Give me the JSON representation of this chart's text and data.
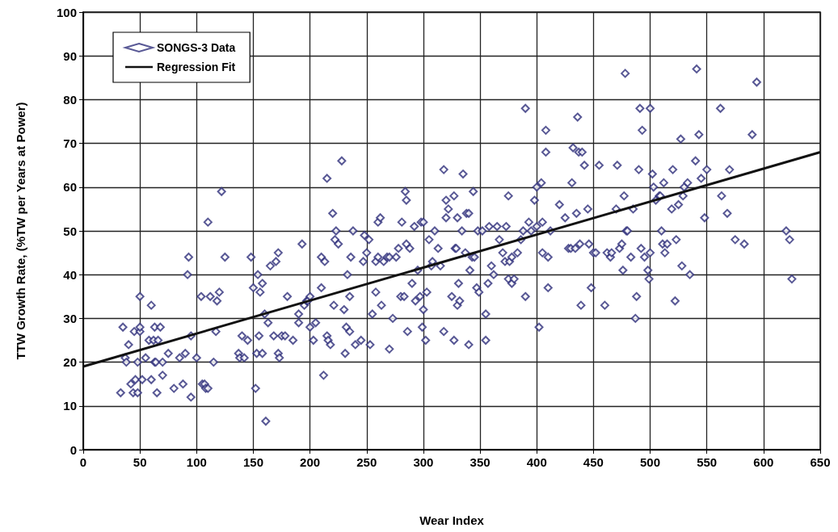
{
  "chart_data": {
    "type": "scatter",
    "xlabel": "Wear Index",
    "ylabel": "TTW Growth Rate, (%TW per Years at Power)",
    "xlim": [
      0,
      650
    ],
    "xticks": [
      0,
      50,
      100,
      150,
      200,
      250,
      300,
      350,
      400,
      450,
      500,
      550,
      600,
      650
    ],
    "ylim": [
      0,
      100
    ],
    "yticks": [
      0,
      10,
      20,
      30,
      40,
      50,
      60,
      70,
      80,
      90,
      100
    ],
    "grid": true,
    "legend": "top left",
    "series": [
      {
        "name": "SONGS-3 Data",
        "marker": "diamond",
        "color": "#2e2e7a",
        "x": [
          33,
          35,
          37,
          38,
          40,
          42,
          44,
          45,
          46,
          48,
          48,
          50,
          50,
          50,
          52,
          55,
          58,
          60,
          60,
          62,
          63,
          63,
          64,
          65,
          66,
          68,
          70,
          70,
          75,
          80,
          85,
          88,
          90,
          92,
          93,
          95,
          95,
          100,
          104,
          105,
          107,
          108,
          110,
          110,
          112,
          115,
          117,
          118,
          120,
          122,
          125,
          137,
          138,
          140,
          142,
          145,
          148,
          150,
          152,
          153,
          154,
          155,
          156,
          158,
          158,
          160,
          161,
          163,
          165,
          168,
          170,
          172,
          172,
          173,
          175,
          178,
          180,
          185,
          190,
          190,
          193,
          195,
          197,
          198,
          200,
          200,
          203,
          205,
          210,
          210,
          212,
          213,
          215,
          215,
          216,
          218,
          220,
          221,
          222,
          223,
          225,
          228,
          230,
          231,
          232,
          233,
          235,
          235,
          236,
          238,
          240,
          245,
          247,
          248,
          250,
          252,
          253,
          255,
          258,
          258,
          260,
          260,
          262,
          263,
          265,
          268,
          270,
          270,
          273,
          276,
          278,
          280,
          281,
          283,
          284,
          285,
          285,
          286,
          288,
          290,
          292,
          293,
          295,
          297,
          298,
          299,
          300,
          300,
          302,
          303,
          305,
          307,
          308,
          310,
          313,
          315,
          318,
          318,
          320,
          320,
          322,
          325,
          327,
          327,
          328,
          329,
          330,
          330,
          331,
          332,
          334,
          335,
          337,
          338,
          340,
          340,
          341,
          343,
          344,
          345,
          347,
          348,
          349,
          352,
          355,
          355,
          357,
          358,
          360,
          362,
          365,
          367,
          370,
          372,
          373,
          375,
          375,
          376,
          378,
          378,
          380,
          383,
          386,
          388,
          390,
          390,
          393,
          395,
          398,
          400,
          400,
          402,
          404,
          405,
          405,
          408,
          408,
          410,
          410,
          412,
          420,
          425,
          428,
          430,
          431,
          432,
          434,
          435,
          436,
          437,
          438,
          439,
          440,
          442,
          445,
          446,
          448,
          450,
          452,
          455,
          460,
          462,
          465,
          466,
          470,
          471,
          473,
          475,
          476,
          477,
          478,
          479,
          480,
          483,
          485,
          487,
          488,
          490,
          491,
          492,
          493,
          495,
          498,
          499,
          500,
          500,
          502,
          503,
          505,
          508,
          509,
          510,
          511,
          512,
          513,
          515,
          519,
          520,
          522,
          523,
          525,
          527,
          528,
          529,
          530,
          533,
          535,
          540,
          541,
          543,
          545,
          548,
          550,
          562,
          563,
          568,
          570,
          575,
          583,
          590,
          594,
          620,
          623,
          625
        ],
        "values": [
          13,
          28,
          21,
          20,
          24,
          15,
          13,
          27,
          16,
          13,
          20,
          35,
          27,
          28,
          16,
          21,
          25,
          33,
          16,
          25,
          20,
          28,
          20,
          13,
          25,
          28,
          17,
          20,
          22,
          14,
          21,
          15,
          22,
          40,
          44,
          12,
          26,
          21,
          35,
          15,
          15,
          14,
          52,
          14,
          35,
          20,
          27,
          34,
          36,
          59,
          44,
          22,
          21,
          26,
          21,
          25,
          44,
          37,
          14,
          22,
          40,
          26,
          36,
          38,
          22,
          31,
          6.5,
          29,
          42,
          26,
          43,
          45,
          22,
          21,
          26,
          26,
          35,
          25,
          29,
          31,
          47,
          33,
          34,
          34,
          28,
          35,
          25,
          29,
          44,
          37,
          17,
          43,
          62,
          26,
          25,
          24,
          54,
          33,
          48,
          50,
          47,
          66,
          32,
          22,
          28,
          40,
          35,
          27,
          44,
          50,
          24,
          25,
          43,
          49,
          45,
          48,
          24,
          31,
          43,
          36,
          52,
          44,
          53,
          33,
          43,
          44,
          44,
          23,
          30,
          44,
          46,
          35,
          52,
          35,
          59,
          57,
          47,
          27,
          46,
          38,
          51,
          34,
          41,
          35,
          52,
          28,
          52,
          32,
          25,
          36,
          48,
          42,
          43,
          50,
          46,
          42,
          27,
          64,
          53,
          57,
          55,
          35,
          25,
          58,
          46,
          46,
          53,
          33,
          38,
          34,
          50,
          63,
          45,
          54,
          54,
          24,
          41,
          44,
          59,
          44,
          37,
          50,
          36,
          50,
          25,
          31,
          38,
          51,
          42,
          40,
          51,
          48,
          45,
          43,
          51,
          58,
          39,
          43,
          38,
          44,
          39,
          45,
          48,
          50,
          78,
          35,
          52,
          50,
          57,
          51,
          60,
          28,
          61,
          52,
          45,
          73,
          68,
          44,
          37,
          50,
          56,
          53,
          46,
          46,
          61,
          69,
          46,
          54,
          76,
          68,
          47,
          33,
          68,
          65,
          55,
          47,
          37,
          45,
          45,
          65,
          33,
          45,
          44,
          45,
          55,
          65,
          46,
          47,
          41,
          58,
          86,
          50,
          50,
          44,
          55,
          30,
          35,
          64,
          78,
          46,
          73,
          44,
          41,
          39,
          78,
          45,
          63,
          60,
          57,
          58,
          58,
          50,
          47,
          61,
          45,
          47,
          55,
          64,
          34,
          48,
          56,
          71,
          42,
          58,
          60,
          61,
          40,
          66,
          87,
          72,
          62,
          53,
          64,
          78,
          58,
          54,
          64,
          48,
          47,
          72,
          84,
          50,
          48,
          39
        ]
      },
      {
        "name": "Regression Fit",
        "type": "line",
        "marker": "none",
        "line_style": "solid",
        "color": "#111111",
        "x": [
          0,
          650
        ],
        "values": [
          19,
          68
        ]
      }
    ]
  }
}
